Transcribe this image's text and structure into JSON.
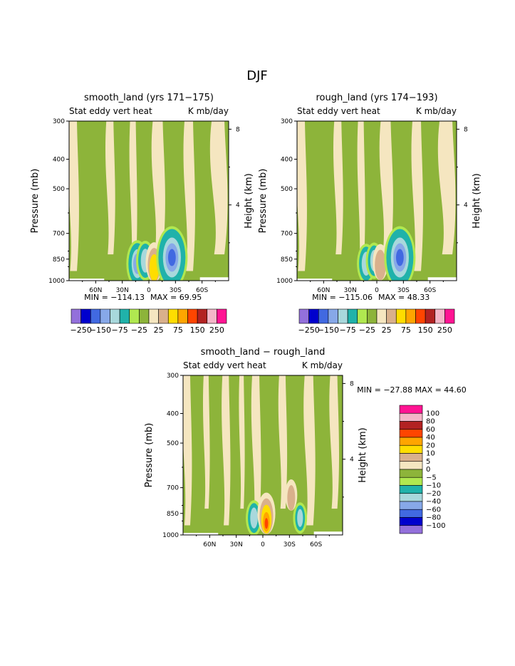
{
  "page_title": "DJF",
  "palette": {
    "purple": "#9370DB",
    "blue_dark": "#0000CD",
    "blue": "#4169E1",
    "blue_light": "#87A8E8",
    "teal_light": "#A8D8DC",
    "teal": "#20B2AA",
    "green_light": "#B0E850",
    "green": "#8DB43A",
    "cream": "#F5E6C0",
    "tan": "#D9B08C",
    "yellow": "#FFDD00",
    "orange": "#FFA500",
    "orange_red": "#FF4500",
    "red_dark": "#B22222",
    "pink_light": "#F4B6C8",
    "magenta": "#FF1493"
  },
  "chart_data": [
    {
      "type": "heatmap",
      "title": "smooth_land (yrs 171−175)",
      "subtitle_left": "Stat eddy vert heat",
      "subtitle_right": "K mb/day",
      "ylabel": "Pressure (mb)",
      "ylabel_right": "Height (km)",
      "y_ticks": [
        "300",
        "400",
        "500",
        "700",
        "850",
        "1000"
      ],
      "y_values": [
        300,
        400,
        500,
        700,
        850,
        1000
      ],
      "right_ticks": [
        "8",
        "4"
      ],
      "right_values": [
        8,
        4
      ],
      "x_ticks": [
        "60N",
        "30N",
        "0",
        "30S",
        "60S"
      ],
      "x_values": [
        60,
        30,
        0,
        -30,
        -60
      ],
      "xlim": [
        90,
        -90
      ],
      "ylim": [
        300,
        1000
      ],
      "min_label": "MIN = −114.13",
      "max_label": "MAX =  69.95",
      "stats": {
        "min": -114.13,
        "max": 69.95
      },
      "colorbar_levels": [
        -250,
        -200,
        -150,
        -100,
        -75,
        -50,
        -25,
        -10,
        10,
        25,
        50,
        75,
        100,
        150,
        200,
        250
      ],
      "colorbar_labels": [
        "−250",
        "−150",
        "−75",
        "−25",
        "25",
        "75",
        "150",
        "250"
      ],
      "features": [
        {
          "lat": 13,
          "p": 880,
          "value": -60,
          "band": "cyan"
        },
        {
          "lat": 4,
          "p": 860,
          "value": -40,
          "band": "cyan"
        },
        {
          "lat": -6,
          "p": 870,
          "value": 40,
          "band": "warm"
        },
        {
          "lat": -26,
          "p": 840,
          "value": -114,
          "band": "blue"
        }
      ]
    },
    {
      "type": "heatmap",
      "title": "rough_land (yrs 174−193)",
      "subtitle_left": "Stat eddy vert heat",
      "subtitle_right": "K mb/day",
      "ylabel": "Pressure (mb)",
      "ylabel_right": "Height (km)",
      "y_ticks": [
        "300",
        "400",
        "500",
        "700",
        "850",
        "1000"
      ],
      "y_values": [
        300,
        400,
        500,
        700,
        850,
        1000
      ],
      "right_ticks": [
        "8",
        "4"
      ],
      "right_values": [
        8,
        4
      ],
      "x_ticks": [
        "60N",
        "30N",
        "0",
        "30S",
        "60S"
      ],
      "x_values": [
        60,
        30,
        0,
        -30,
        -60
      ],
      "xlim": [
        90,
        -90
      ],
      "ylim": [
        300,
        1000
      ],
      "min_label": "MIN = −115.06",
      "max_label": "MAX =  48.33",
      "stats": {
        "min": -115.06,
        "max": 48.33
      },
      "colorbar_levels": [
        -250,
        -200,
        -150,
        -100,
        -75,
        -50,
        -25,
        -10,
        10,
        25,
        50,
        75,
        100,
        150,
        200,
        250
      ],
      "colorbar_labels": [
        "−250",
        "−150",
        "−75",
        "−25",
        "25",
        "75",
        "150",
        "250"
      ],
      "features": [
        {
          "lat": 12,
          "p": 880,
          "value": -40,
          "band": "cyan"
        },
        {
          "lat": 3,
          "p": 860,
          "value": -30,
          "band": "cyan"
        },
        {
          "lat": -4,
          "p": 870,
          "value": 30,
          "band": "warm"
        },
        {
          "lat": -26,
          "p": 840,
          "value": -115,
          "band": "blue"
        }
      ]
    },
    {
      "type": "heatmap",
      "title": "smooth_land − rough_land",
      "subtitle_left": "Stat eddy vert heat",
      "subtitle_right": "K mb/day",
      "ylabel": "Pressure (mb)",
      "ylabel_right": "Height (km)",
      "y_ticks": [
        "300",
        "400",
        "500",
        "700",
        "850",
        "1000"
      ],
      "y_values": [
        300,
        400,
        500,
        700,
        850,
        1000
      ],
      "right_ticks": [
        "8",
        "4"
      ],
      "right_values": [
        8,
        4
      ],
      "x_ticks": [
        "60N",
        "30N",
        "0",
        "30S",
        "60S"
      ],
      "x_values": [
        60,
        30,
        0,
        -30,
        -60
      ],
      "xlim": [
        90,
        -90
      ],
      "ylim": [
        300,
        1000
      ],
      "minmax_label": "MIN = −27.88  MAX =  44.60",
      "stats": {
        "min": -27.88,
        "max": 44.6
      },
      "colorbar_levels": [
        -100,
        -80,
        -60,
        -40,
        -20,
        -10,
        -5,
        0,
        5,
        10,
        20,
        40,
        60,
        80,
        100
      ],
      "colorbar_labels": [
        "100",
        "80",
        "60",
        "40",
        "20",
        "10",
        "5",
        "0",
        "−5",
        "−10",
        "−20",
        "−40",
        "−60",
        "−80",
        "−100"
      ],
      "features": [
        {
          "lat": 10,
          "p": 880,
          "value": -28,
          "band": "cyan"
        },
        {
          "lat": -4,
          "p": 850,
          "value": 44.6,
          "band": "warm"
        },
        {
          "lat": -32,
          "p": 740,
          "value": 12,
          "band": "warm"
        },
        {
          "lat": -42,
          "p": 880,
          "value": -15,
          "band": "cyan"
        }
      ]
    }
  ]
}
